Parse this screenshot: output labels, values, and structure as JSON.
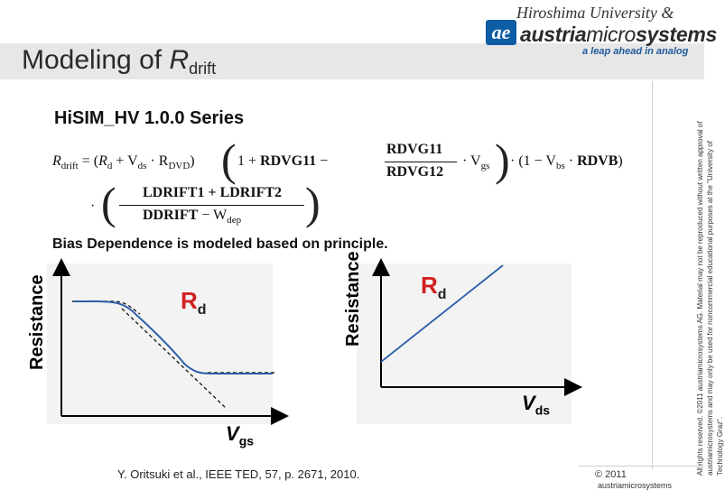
{
  "header": {
    "title_main": "Modeling of ",
    "title_var": "R",
    "title_sub": "drift",
    "university": "Hiroshima University &",
    "logo_letters": "ae",
    "company_a": "austria",
    "company_b": "micro",
    "company_c": "systems",
    "tagline": "a leap ahead in analog"
  },
  "section_heading": "HiSIM_HV 1.0.0 Series",
  "equation": {
    "lhs": "R",
    "lhs_sub": "drift",
    "equals": " = (",
    "rd": "R",
    "rd_sub": "d",
    "plus_vds": " + V",
    "vds_sub": "ds",
    "dot_rdvd": " · R",
    "rdvd_sub": "DVD",
    "close1": ")",
    "one_plus": "1 + ",
    "rdvg11_a": "RDVG11",
    "minus": " − ",
    "frac_num": "RDVG11",
    "frac_den": "RDVG12",
    "dot_vgs": "· V",
    "vgs_sub": "gs",
    "one_minus": "· (1 − V",
    "vbs_sub": "bs",
    "dot_rdvb": " · ",
    "rdvb": "RDVB",
    "close2": ")",
    "line2_dot": "·",
    "ldrift_num": "LDRIFT1 + LDRIFT2",
    "ddrift": "DDRIFT",
    "minus_w": " − W",
    "w_sub": "dep"
  },
  "bias_text": "Bias Dependence is modeled based on principle.",
  "graph_left": {
    "ylabel": "Resistance",
    "curve_label": "R",
    "curve_label_sub": "d",
    "xlabel": "V",
    "xlabel_sub": "gs"
  },
  "graph_right": {
    "ylabel": "Resistance",
    "curve_label": "R",
    "curve_label_sub": "d",
    "xlabel": "V",
    "xlabel_sub": "ds"
  },
  "citation": "Y. Oritsuki et al., IEEE TED, 57, p. 2671, 2010.",
  "side_copyright": "All rights reserved. ©2011 austriamicrosystems AG. Material may not be reproduced without written approval of austriamicrosystems and may only be used for noncommercial educational purposes at the \"University of Technology Graz\".",
  "footer_copy": "© 2011",
  "footer_company": "austriamicrosystems",
  "colors": {
    "accent_blue": "#2a5ea8",
    "curve_red": "#d22020",
    "band_gray": "#e7e7e7"
  }
}
